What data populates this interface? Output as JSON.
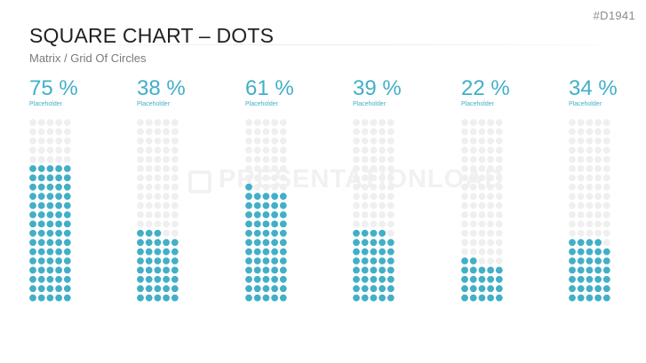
{
  "header": {
    "code": "#D1941",
    "title": "SQUARE CHART – DOTS",
    "subtitle": "Matrix / Grid Of Circles"
  },
  "watermark": {
    "text": "PRESENTATIONLOAD"
  },
  "colors": {
    "filled": "#42afc7",
    "empty": "#efefef"
  },
  "chart_data": {
    "type": "dot-matrix",
    "grid": {
      "columns": 5,
      "rows": 20,
      "total": 100
    },
    "items": [
      {
        "percent_label": "75 %",
        "value": 75,
        "label": "Placeholder"
      },
      {
        "percent_label": "38 %",
        "value": 38,
        "label": "Placeholder"
      },
      {
        "percent_label": "61 %",
        "value": 61,
        "label": "Placeholder"
      },
      {
        "percent_label": "39 %",
        "value": 39,
        "label": "Placeholder"
      },
      {
        "percent_label": "22 %",
        "value": 22,
        "label": "Placeholder"
      },
      {
        "percent_label": "34 %",
        "value": 34,
        "label": "Placeholder"
      }
    ]
  }
}
